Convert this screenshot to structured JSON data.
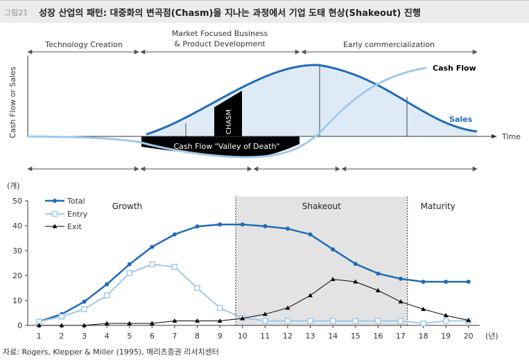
{
  "title": {
    "prefix": "그림21",
    "text": "성장 산업의 패턴: 대중화의 변곡점(Chasm)을 지나는 과정에서 기업 도태 현상(Shakeout) 진행"
  },
  "source": "자료: Rogers, Klepper & Miller (1995), 메리츠증권 리서치센터",
  "colors": {
    "dark_blue": "#1f6bb5",
    "light_blue": "#9ec9ec",
    "shade": "#e3e3e3",
    "black": "#000000"
  },
  "diagram": {
    "phases": [
      "Technology Creation",
      "Market Focused Business",
      "& Product Development",
      "Early commercialization"
    ],
    "ylabel": "Cash Flow or Sales",
    "xlabel": "Time",
    "chasm": "CHASM",
    "valley": "Cash Flow \"Valley of Death\"",
    "cashflow_label": "Cash Flow",
    "sales_label": "Sales"
  },
  "chart_data": {
    "type": "line",
    "unit_y": "(개)",
    "unit_x": "(년)",
    "x": [
      1,
      2,
      3,
      4,
      5,
      6,
      7,
      8,
      9,
      10,
      11,
      12,
      13,
      14,
      15,
      16,
      17,
      18,
      19,
      20
    ],
    "yticks": [
      0,
      10,
      20,
      30,
      40,
      50
    ],
    "ylim": [
      0,
      50
    ],
    "regions": [
      {
        "label": "Growth",
        "from": 1,
        "to": 9.7
      },
      {
        "label": "Shakeout",
        "from": 9.7,
        "to": 17.3
      },
      {
        "label": "Maturity",
        "from": 17.3,
        "to": 20
      }
    ],
    "series": [
      {
        "name": "Total",
        "values": [
          1.5,
          4.5,
          9.5,
          16.5,
          24.5,
          31.5,
          36.5,
          39.7,
          40.5,
          40.5,
          39.8,
          38.8,
          36.5,
          30.5,
          24.7,
          20.8,
          18.7,
          17.5,
          17.5,
          17.5
        ]
      },
      {
        "name": "Entry",
        "values": [
          1.5,
          3.5,
          6.5,
          12,
          21,
          24.5,
          23.5,
          15,
          7,
          3,
          1.8,
          1.8,
          1.8,
          1.8,
          1.8,
          1.8,
          1.8,
          0.8,
          1.8,
          1.8
        ]
      },
      {
        "name": "Exit",
        "values": [
          0,
          0,
          0,
          0.8,
          0.8,
          0.8,
          1.8,
          1.8,
          1.8,
          2.8,
          4.5,
          7,
          12,
          18.5,
          17.5,
          14,
          9.5,
          6.5,
          4,
          2
        ]
      }
    ]
  }
}
